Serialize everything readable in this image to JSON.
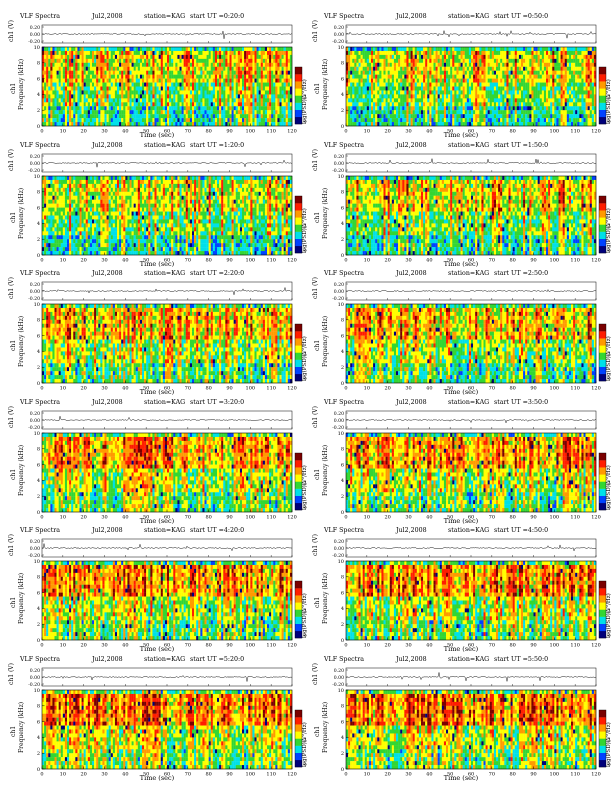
{
  "colors": {
    "scale_top": "#7a0000",
    "scale_red": "#ff1d00",
    "scale_orange": "#ff9a00",
    "scale_yellow": "#ffff00",
    "scale_green": "#33d633",
    "scale_cyan": "#00e0e8",
    "scale_blue": "#0042ff",
    "scale_bottom": "#00007a",
    "line": "#000000"
  },
  "chart_data": [
    {
      "type": "heatmap",
      "title": "VLF Spectra",
      "date": "Jul2,2008",
      "station": "station=KAG",
      "start": "start UT =0:20:0",
      "channel_label": "ch1 (V)",
      "channel_ticks": [
        "0.20",
        "0.00",
        "-0.20"
      ],
      "ylabel_prefix": "ch1",
      "ylabel": "Frequency (kHz)",
      "y_ticks": [
        "0",
        "2",
        "4",
        "6",
        "8",
        "10"
      ],
      "xlabel": "Time (sec)",
      "x_ticks": [
        "0",
        "10",
        "20",
        "30",
        "40",
        "50",
        "60",
        "70",
        "80",
        "90",
        "100",
        "110",
        "120"
      ],
      "xlim": [
        0,
        120
      ],
      "ylim": [
        0,
        10
      ],
      "colorbar_label": "log(PSD)(V²/Hz)",
      "colorbar_ticks": [
        "-4",
        "-6"
      ],
      "activity": 0.55
    },
    {
      "type": "heatmap",
      "title": "VLF Spectra",
      "date": "Jul2,2008",
      "station": "station=KAG",
      "start": "start UT =0:50:0",
      "channel_label": "ch1 (V)",
      "channel_ticks": [
        "0.20",
        "0.00",
        "-0.20"
      ],
      "ylabel_prefix": "ch1",
      "ylabel": "Frequency (kHz)",
      "y_ticks": [
        "0",
        "2",
        "4",
        "6",
        "8",
        "10"
      ],
      "xlabel": "Time (sec)",
      "x_ticks": [
        "0",
        "10",
        "20",
        "30",
        "40",
        "50",
        "60",
        "70",
        "80",
        "90",
        "100",
        "110",
        "120"
      ],
      "xlim": [
        0,
        120
      ],
      "ylim": [
        0,
        10
      ],
      "colorbar_label": "log(PSD)(V²/Hz)",
      "colorbar_ticks": [
        "-4",
        "-6"
      ],
      "activity": 0.55
    },
    {
      "type": "heatmap",
      "title": "VLF Spectra",
      "date": "Jul2,2008",
      "station": "station=KAG",
      "start": "start UT =1:20:0",
      "channel_label": "ch1 (V)",
      "channel_ticks": [
        "0.20",
        "0.00",
        "-0.20"
      ],
      "ylabel_prefix": "ch1",
      "ylabel": "Frequency (kHz)",
      "y_ticks": [
        "0",
        "2",
        "4",
        "6",
        "8",
        "10"
      ],
      "xlabel": "Time (sec)",
      "x_ticks": [
        "0",
        "10",
        "20",
        "30",
        "40",
        "50",
        "60",
        "70",
        "80",
        "90",
        "100",
        "110",
        "120"
      ],
      "xlim": [
        0,
        120
      ],
      "ylim": [
        0,
        10
      ],
      "colorbar_label": "log(PSD)(V²/Hz)",
      "colorbar_ticks": [
        "-4",
        "-6"
      ],
      "activity": 0.45
    },
    {
      "type": "heatmap",
      "title": "VLF Spectra",
      "date": "Jul2,2008",
      "station": "station=KAG",
      "start": "start UT =1:50:0",
      "channel_label": "ch1 (V)",
      "channel_ticks": [
        "0.20",
        "0.00",
        "-0.20"
      ],
      "ylabel_prefix": "ch1",
      "ylabel": "Frequency (kHz)",
      "y_ticks": [
        "0",
        "2",
        "4",
        "6",
        "8",
        "10"
      ],
      "xlabel": "Time (sec)",
      "x_ticks": [
        "0",
        "10",
        "20",
        "30",
        "40",
        "50",
        "60",
        "70",
        "80",
        "90",
        "100",
        "110",
        "120"
      ],
      "xlim": [
        0,
        120
      ],
      "ylim": [
        0,
        10
      ],
      "colorbar_label": "log(PSD)(V²/Hz)",
      "colorbar_ticks": [
        "-4",
        "-6"
      ],
      "activity": 0.6
    },
    {
      "type": "heatmap",
      "title": "VLF Spectra",
      "date": "Jul2,2008",
      "station": "station=KAG",
      "start": "start UT =2:20:0",
      "channel_label": "ch1 (V)",
      "channel_ticks": [
        "0.20",
        "0.00",
        "-0.20"
      ],
      "ylabel_prefix": "ch1",
      "ylabel": "Frequency (kHz)",
      "y_ticks": [
        "0",
        "2",
        "4",
        "6",
        "8",
        "10"
      ],
      "xlabel": "Time (sec)",
      "x_ticks": [
        "0",
        "10",
        "20",
        "30",
        "40",
        "50",
        "60",
        "70",
        "80",
        "90",
        "100",
        "110",
        "120"
      ],
      "xlim": [
        0,
        120
      ],
      "ylim": [
        0,
        10
      ],
      "colorbar_label": "log(PSD)(V²/Hz)",
      "colorbar_ticks": [
        "-4",
        "-6"
      ],
      "activity": 0.7
    },
    {
      "type": "heatmap",
      "title": "VLF Spectra",
      "date": "Jul2,2008",
      "station": "station=KAG",
      "start": "start UT =2:50:0",
      "channel_label": "ch1 (V)",
      "channel_ticks": [
        "0.20",
        "0.00",
        "-0.20"
      ],
      "ylabel_prefix": "ch1",
      "ylabel": "Frequency (kHz)",
      "y_ticks": [
        "0",
        "2",
        "4",
        "6",
        "8",
        "10"
      ],
      "xlabel": "Time (sec)",
      "x_ticks": [
        "0",
        "10",
        "20",
        "30",
        "40",
        "50",
        "60",
        "70",
        "80",
        "90",
        "100",
        "110",
        "120"
      ],
      "xlim": [
        0,
        120
      ],
      "ylim": [
        0,
        10
      ],
      "colorbar_label": "log(PSD)(V²/Hz)",
      "colorbar_ticks": [
        "-4",
        "-6"
      ],
      "activity": 0.7
    },
    {
      "type": "heatmap",
      "title": "VLF Spectra",
      "date": "Jul2,2008",
      "station": "station=KAG",
      "start": "start UT =3:20:0",
      "channel_label": "ch1 (V)",
      "channel_ticks": [
        "0.20",
        "0.00",
        "-0.20"
      ],
      "ylabel_prefix": "ch1",
      "ylabel": "Frequency (kHz)",
      "y_ticks": [
        "0",
        "2",
        "4",
        "6",
        "8",
        "10"
      ],
      "xlabel": "Time (sec)",
      "x_ticks": [
        "0",
        "10",
        "20",
        "30",
        "40",
        "50",
        "60",
        "70",
        "80",
        "90",
        "100",
        "110",
        "120"
      ],
      "xlim": [
        0,
        120
      ],
      "ylim": [
        0,
        10
      ],
      "colorbar_label": "log(PSD)(V²/Hz)",
      "colorbar_ticks": [
        "-4",
        "-6"
      ],
      "activity": 0.8
    },
    {
      "type": "heatmap",
      "title": "VLF Spectra",
      "date": "Jul2,2008",
      "station": "station=KAG",
      "start": "start UT =3:50:0",
      "channel_label": "ch1 (V)",
      "channel_ticks": [
        "0.20",
        "0.00",
        "-0.20"
      ],
      "ylabel_prefix": "ch1",
      "ylabel": "Frequency (kHz)",
      "y_ticks": [
        "0",
        "2",
        "4",
        "6",
        "8",
        "10"
      ],
      "xlabel": "Time (sec)",
      "x_ticks": [
        "0",
        "10",
        "20",
        "30",
        "40",
        "50",
        "60",
        "70",
        "80",
        "90",
        "100",
        "110",
        "120"
      ],
      "xlim": [
        0,
        120
      ],
      "ylim": [
        0,
        10
      ],
      "colorbar_label": "log(PSD)(V²/Hz)",
      "colorbar_ticks": [
        "-4",
        "-6"
      ],
      "activity": 0.8
    },
    {
      "type": "heatmap",
      "title": "VLF Spectra",
      "date": "Jul2,2008",
      "station": "station=KAG",
      "start": "start UT =4:20:0",
      "channel_label": "ch1 (V)",
      "channel_ticks": [
        "0.20",
        "0.00",
        "-0.20"
      ],
      "ylabel_prefix": "ch1",
      "ylabel": "Frequency (kHz)",
      "y_ticks": [
        "0",
        "2",
        "4",
        "6",
        "8",
        "10"
      ],
      "xlabel": "Time (sec)",
      "x_ticks": [
        "0",
        "10",
        "20",
        "30",
        "40",
        "50",
        "60",
        "70",
        "80",
        "90",
        "100",
        "110",
        "120"
      ],
      "xlim": [
        0,
        120
      ],
      "ylim": [
        0,
        10
      ],
      "colorbar_label": "log(PSD)(V²/Hz)",
      "colorbar_ticks": [
        "-4",
        "-6"
      ],
      "activity": 0.9
    },
    {
      "type": "heatmap",
      "title": "VLF Spectra",
      "date": "Jul2,2008",
      "station": "station=KAG",
      "start": "start UT =4:50:0",
      "channel_label": "ch1 (V)",
      "channel_ticks": [
        "0.20",
        "0.00",
        "-0.20"
      ],
      "ylabel_prefix": "ch1",
      "ylabel": "Frequency (kHz)",
      "y_ticks": [
        "0",
        "2",
        "4",
        "6",
        "8",
        "10"
      ],
      "xlabel": "Time (sec)",
      "x_ticks": [
        "0",
        "10",
        "20",
        "30",
        "40",
        "50",
        "60",
        "70",
        "80",
        "90",
        "100",
        "110",
        "120"
      ],
      "xlim": [
        0,
        120
      ],
      "ylim": [
        0,
        10
      ],
      "colorbar_label": "log(PSD)(V²/Hz)",
      "colorbar_ticks": [
        "-4",
        "-6"
      ],
      "activity": 0.9
    },
    {
      "type": "heatmap",
      "title": "VLF Spectra",
      "date": "Jul2,2008",
      "station": "station=KAG",
      "start": "start UT =5:20:0",
      "channel_label": "ch1 (V)",
      "channel_ticks": [
        "0.20",
        "0.00",
        "-0.20"
      ],
      "ylabel_prefix": "ch1",
      "ylabel": "Frequency (kHz)",
      "y_ticks": [
        "0",
        "2",
        "4",
        "6",
        "8",
        "10"
      ],
      "xlabel": "Time (sec)",
      "x_ticks": [
        "0",
        "10",
        "20",
        "30",
        "40",
        "50",
        "60",
        "70",
        "80",
        "90",
        "100",
        "110",
        "120"
      ],
      "xlim": [
        0,
        120
      ],
      "ylim": [
        0,
        10
      ],
      "colorbar_label": "log(PSD)(V²/Hz)",
      "colorbar_ticks": [
        "-4",
        "-6"
      ],
      "activity": 0.95
    },
    {
      "type": "heatmap",
      "title": "VLF Spectra",
      "date": "Jul2,2008",
      "station": "station=KAG",
      "start": "start UT =5:50:0",
      "channel_label": "ch1 (V)",
      "channel_ticks": [
        "0.20",
        "0.00",
        "-0.20"
      ],
      "ylabel_prefix": "ch1",
      "ylabel": "Frequency (kHz)",
      "y_ticks": [
        "0",
        "2",
        "4",
        "6",
        "8",
        "10"
      ],
      "xlabel": "Time (sec)",
      "x_ticks": [
        "0",
        "10",
        "20",
        "30",
        "40",
        "50",
        "60",
        "70",
        "80",
        "90",
        "100",
        "110",
        "120"
      ],
      "xlim": [
        0,
        120
      ],
      "ylim": [
        0,
        10
      ],
      "colorbar_label": "log(PSD)(V²/Hz)",
      "colorbar_ticks": [
        "-4",
        "-6"
      ],
      "activity": 0.95
    }
  ]
}
